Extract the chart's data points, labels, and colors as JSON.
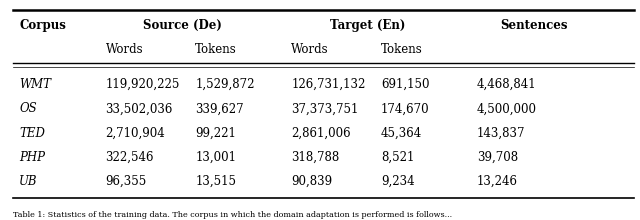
{
  "header_row1_cols": [
    "Corpus",
    "Source (De)",
    "Target (En)",
    "Sentences"
  ],
  "header_row1_spans": [
    1,
    2,
    2,
    1
  ],
  "header_row2": [
    "Words",
    "Tokens",
    "Words",
    "Tokens"
  ],
  "rows": [
    [
      "WMT",
      "119,920,225",
      "1,529,872",
      "126,731,132",
      "691,150",
      "4,468,841"
    ],
    [
      "OS",
      "33,502,036",
      "339,627",
      "37,373,751",
      "174,670",
      "4,500,000"
    ],
    [
      "TED",
      "2,710,904",
      "99,221",
      "2,861,006",
      "45,364",
      "143,837"
    ],
    [
      "PHP",
      "322,546",
      "13,001",
      "318,788",
      "8,521",
      "39,708"
    ],
    [
      "UB",
      "96,355",
      "13,515",
      "90,839",
      "9,234",
      "13,246"
    ]
  ],
  "bg_color": "#ffffff",
  "fontsize": 8.5,
  "caption": "Table 1: Statistics of the training data. The corpus in which the domain adaptation is performed is follows..."
}
